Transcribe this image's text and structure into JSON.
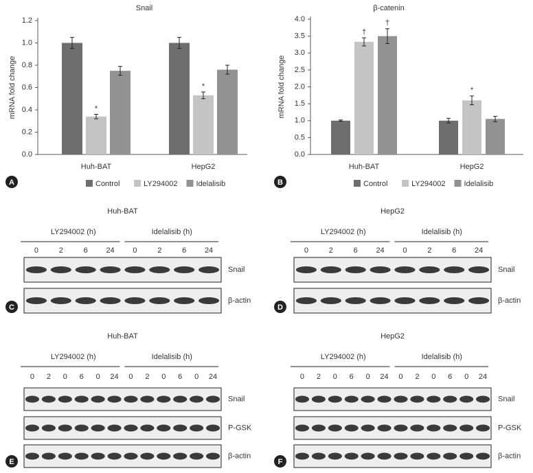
{
  "chart_data": [
    {
      "type": "bar",
      "panel": "A",
      "title": "Snail",
      "y_label": "mRNA fold change",
      "categories": [
        "Huh-BAT",
        "HepG2"
      ],
      "series": [
        {
          "name": "Control",
          "color": "#6e6e6e",
          "values": [
            1.0,
            1.0
          ],
          "errors": [
            0.05,
            0.05
          ]
        },
        {
          "name": "LY294002",
          "color": "#c4c4c4",
          "values": [
            0.34,
            0.53
          ],
          "errors": [
            0.02,
            0.03
          ],
          "annotations": [
            "*",
            "*"
          ]
        },
        {
          "name": "Idelalisib",
          "color": "#929292",
          "values": [
            0.75,
            0.76
          ],
          "errors": [
            0.04,
            0.04
          ]
        }
      ],
      "ylim": [
        0,
        1.2
      ],
      "yticks": [
        {
          "value": 0,
          "label": "0.0"
        },
        0.2,
        0.4,
        0.6,
        0.8,
        {
          "value": 1,
          "label": "1.0"
        },
        1.2
      ],
      "legend": "bottom"
    },
    {
      "type": "bar",
      "panel": "B",
      "title": "β-catenin",
      "y_label": "mRNA fold change",
      "categories": [
        "Huh-BAT",
        "HepG2"
      ],
      "series": [
        {
          "name": "Control",
          "color": "#6e6e6e",
          "values": [
            1.0,
            1.0
          ],
          "errors": [
            0.02,
            0.07
          ]
        },
        {
          "name": "LY294002",
          "color": "#c4c4c4",
          "values": [
            3.33,
            1.6
          ],
          "errors": [
            0.12,
            0.13
          ],
          "annotations": [
            "†",
            "*"
          ]
        },
        {
          "name": "Idelalisib",
          "color": "#929292",
          "values": [
            3.5,
            1.05
          ],
          "errors": [
            0.22,
            0.08
          ],
          "annotations": [
            "†",
            null
          ]
        }
      ],
      "ylim": [
        0,
        4
      ],
      "yticks": [
        {
          "value": 0,
          "label": "0.0"
        },
        0.5,
        {
          "value": 1,
          "label": "1.0"
        },
        1.5,
        {
          "value": 2,
          "label": "2.0"
        },
        2.5,
        {
          "value": 3,
          "label": "3.0"
        },
        3.5,
        {
          "value": 4,
          "label": "4.0"
        }
      ],
      "legend": "bottom"
    }
  ],
  "blots": [
    {
      "panel": "C",
      "title": "Huh-BAT",
      "groups": [
        {
          "label": "LY294002 (h)",
          "lanes": [
            "0",
            "2",
            "6",
            "24"
          ]
        },
        {
          "label": "Idelalisib (h)",
          "lanes": [
            "0",
            "2",
            "6",
            "24"
          ]
        }
      ],
      "rows": [
        "Snail",
        "β-actin"
      ]
    },
    {
      "panel": "D",
      "title": "HepG2",
      "groups": [
        {
          "label": "LY294002 (h)",
          "lanes": [
            "0",
            "2",
            "6",
            "24"
          ]
        },
        {
          "label": "Idelalisib (h)",
          "lanes": [
            "0",
            "2",
            "6",
            "24"
          ]
        }
      ],
      "rows": [
        "Snail",
        "β-actin"
      ]
    },
    {
      "panel": "E",
      "title": "Huh-BAT",
      "groups": [
        {
          "label": "LY294002 (h)",
          "lanes": [
            "0",
            "2",
            "0",
            "6",
            "0",
            "24"
          ]
        },
        {
          "label": "Idelalisib (h)",
          "lanes": [
            "0",
            "2",
            "0",
            "6",
            "0",
            "24"
          ]
        }
      ],
      "rows": [
        "Snail",
        "P-GSK",
        "β-actin"
      ]
    },
    {
      "panel": "F",
      "title": "HepG2",
      "groups": [
        {
          "label": "LY294002 (h)",
          "lanes": [
            "0",
            "2",
            "0",
            "6",
            "0",
            "24"
          ]
        },
        {
          "label": "Idelalisib (h)",
          "lanes": [
            "0",
            "2",
            "0",
            "6",
            "0",
            "24"
          ]
        }
      ],
      "rows": [
        "Snail",
        "P-GSK",
        "β-actin"
      ]
    }
  ]
}
